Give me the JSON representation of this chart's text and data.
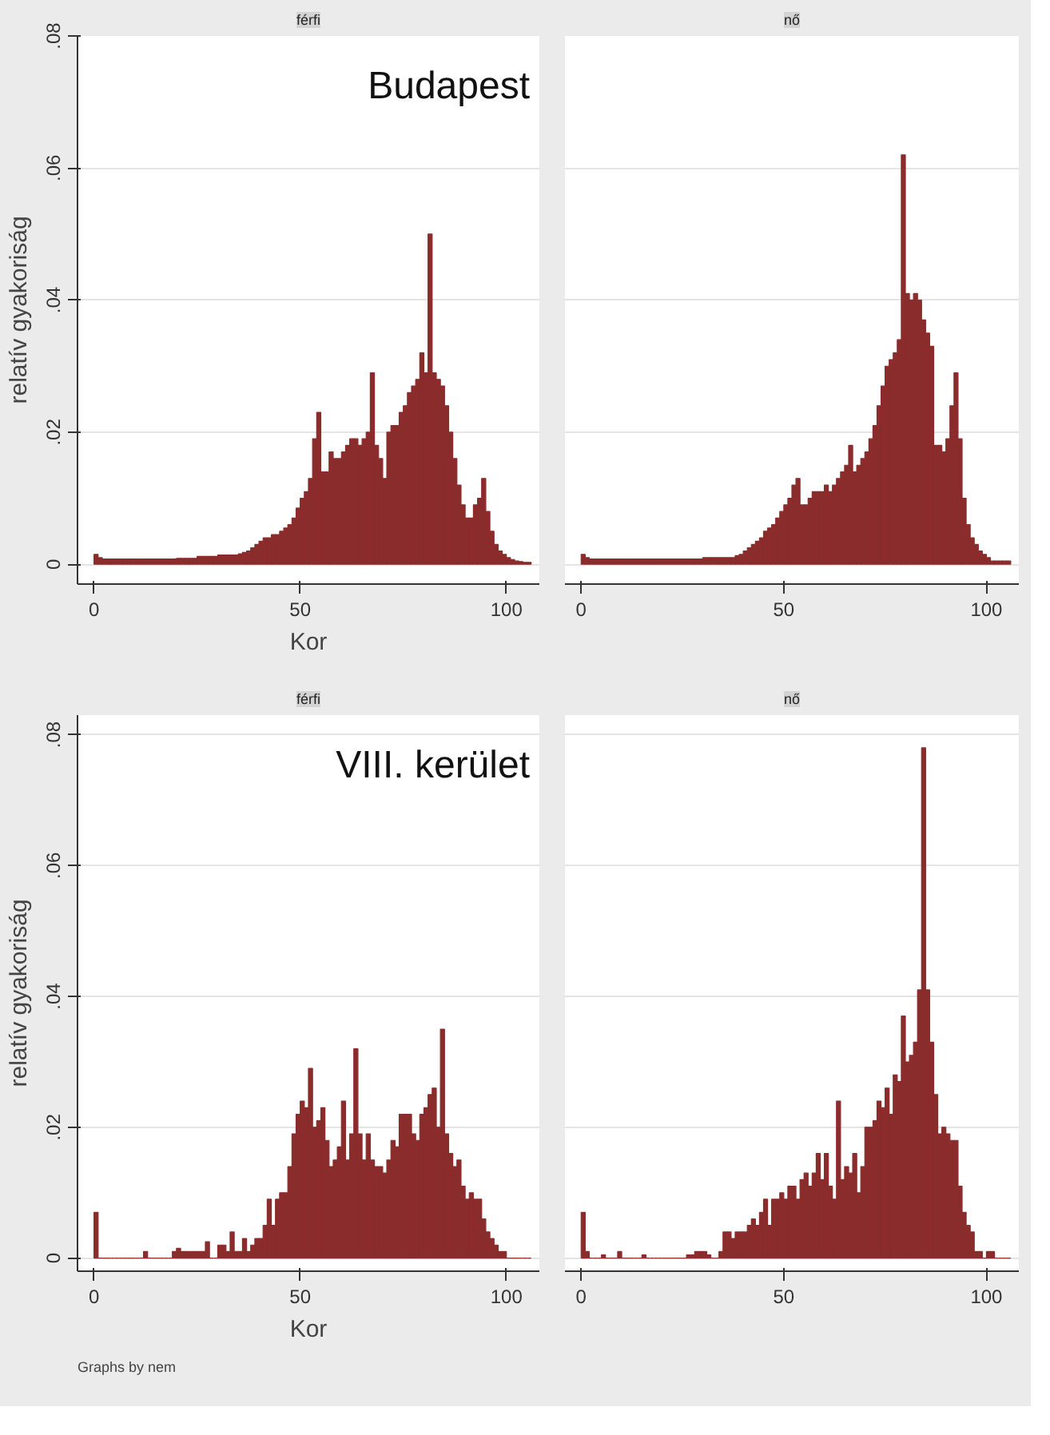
{
  "chart_data": [
    {
      "type": "histogram",
      "title": "férfi",
      "subtitle": "Budapest",
      "xlabel": "Kor",
      "ylabel": "relatív gyakoriság",
      "color": "#8b2c2c",
      "grid": "y",
      "xlim": [
        -4,
        108
      ],
      "ylim": [
        -0.003,
        0.08
      ],
      "xticks": [
        0,
        50,
        100
      ],
      "yticks": [
        {
          "value": 0,
          "label": "0"
        },
        {
          "value": 0.02,
          "label": ".02"
        },
        {
          "value": 0.04,
          "label": ".04"
        },
        {
          "value": 0.06,
          "label": ".06"
        },
        {
          "value": 0.08,
          "label": ".08"
        }
      ],
      "bins": [
        0,
        1,
        2,
        3,
        4,
        5,
        6,
        7,
        8,
        9,
        10,
        11,
        12,
        13,
        14,
        15,
        16,
        17,
        18,
        19,
        20,
        21,
        22,
        23,
        24,
        25,
        26,
        27,
        28,
        29,
        30,
        31,
        32,
        33,
        34,
        35,
        36,
        37,
        38,
        39,
        40,
        41,
        42,
        43,
        44,
        45,
        46,
        47,
        48,
        49,
        50,
        51,
        52,
        53,
        54,
        55,
        56,
        57,
        58,
        59,
        60,
        61,
        62,
        63,
        64,
        65,
        66,
        67,
        68,
        69,
        70,
        71,
        72,
        73,
        74,
        75,
        76,
        77,
        78,
        79,
        80,
        81,
        82,
        83,
        84,
        85,
        86,
        87,
        88,
        89,
        90,
        91,
        92,
        93,
        94,
        95,
        96,
        97,
        98,
        99,
        100,
        101,
        102,
        103,
        104,
        105,
        106
      ],
      "values": [
        0.0015,
        0.001,
        0.0008,
        0.0008,
        0.0008,
        0.0008,
        0.0008,
        0.0008,
        0.0008,
        0.0008,
        0.0008,
        0.0008,
        0.0008,
        0.0008,
        0.0008,
        0.0008,
        0.0008,
        0.0008,
        0.0008,
        0.0008,
        0.0009,
        0.0009,
        0.0009,
        0.0009,
        0.0009,
        0.0012,
        0.0012,
        0.0012,
        0.0012,
        0.0012,
        0.0014,
        0.0014,
        0.0014,
        0.0014,
        0.0014,
        0.0016,
        0.0018,
        0.002,
        0.0025,
        0.003,
        0.0035,
        0.004,
        0.004,
        0.0045,
        0.0045,
        0.005,
        0.0055,
        0.006,
        0.007,
        0.0085,
        0.01,
        0.011,
        0.013,
        0.019,
        0.023,
        0.014,
        0.014,
        0.017,
        0.016,
        0.016,
        0.017,
        0.018,
        0.019,
        0.019,
        0.018,
        0.019,
        0.02,
        0.029,
        0.018,
        0.016,
        0.013,
        0.02,
        0.021,
        0.021,
        0.023,
        0.024,
        0.026,
        0.027,
        0.028,
        0.032,
        0.029,
        0.05,
        0.029,
        0.028,
        0.027,
        0.024,
        0.02,
        0.016,
        0.012,
        0.009,
        0.007,
        0.007,
        0.009,
        0.01,
        0.013,
        0.008,
        0.005,
        0.003,
        0.002,
        0.0015,
        0.001,
        0.0007,
        0.0005,
        0.0004,
        0.0003,
        0.0003
      ]
    },
    {
      "type": "histogram",
      "title": "nő",
      "color": "#8b2c2c",
      "grid": "y",
      "tick_labels": "x",
      "xlim": [
        -4,
        108
      ],
      "ylim": [
        -0.003,
        0.08
      ],
      "xticks": [
        0,
        50,
        100
      ],
      "yticks": [
        0,
        0.02,
        0.04,
        0.06,
        0.08
      ],
      "bins": [
        0,
        1,
        2,
        3,
        4,
        5,
        6,
        7,
        8,
        9,
        10,
        11,
        12,
        13,
        14,
        15,
        16,
        17,
        18,
        19,
        20,
        21,
        22,
        23,
        24,
        25,
        26,
        27,
        28,
        29,
        30,
        31,
        32,
        33,
        34,
        35,
        36,
        37,
        38,
        39,
        40,
        41,
        42,
        43,
        44,
        45,
        46,
        47,
        48,
        49,
        50,
        51,
        52,
        53,
        54,
        55,
        56,
        57,
        58,
        59,
        60,
        61,
        62,
        63,
        64,
        65,
        66,
        67,
        68,
        69,
        70,
        71,
        72,
        73,
        74,
        75,
        76,
        77,
        78,
        79,
        80,
        81,
        82,
        83,
        84,
        85,
        86,
        87,
        88,
        89,
        90,
        91,
        92,
        93,
        94,
        95,
        96,
        97,
        98,
        99,
        100,
        101,
        102,
        103,
        104,
        105,
        106
      ],
      "values": [
        0.0015,
        0.001,
        0.0008,
        0.0008,
        0.0008,
        0.0008,
        0.0008,
        0.0008,
        0.0008,
        0.0008,
        0.0008,
        0.0008,
        0.0008,
        0.0008,
        0.0008,
        0.0008,
        0.0008,
        0.0008,
        0.0008,
        0.0008,
        0.0008,
        0.0008,
        0.0008,
        0.0008,
        0.0008,
        0.0008,
        0.0008,
        0.0008,
        0.0008,
        0.0008,
        0.001,
        0.001,
        0.001,
        0.001,
        0.001,
        0.001,
        0.001,
        0.001,
        0.0013,
        0.0015,
        0.002,
        0.0025,
        0.003,
        0.0035,
        0.004,
        0.005,
        0.0055,
        0.006,
        0.007,
        0.008,
        0.009,
        0.01,
        0.012,
        0.013,
        0.009,
        0.009,
        0.01,
        0.011,
        0.011,
        0.011,
        0.012,
        0.011,
        0.012,
        0.013,
        0.014,
        0.015,
        0.018,
        0.014,
        0.015,
        0.016,
        0.017,
        0.019,
        0.021,
        0.024,
        0.027,
        0.03,
        0.031,
        0.032,
        0.034,
        0.062,
        0.041,
        0.04,
        0.041,
        0.04,
        0.037,
        0.035,
        0.033,
        0.018,
        0.018,
        0.017,
        0.019,
        0.024,
        0.029,
        0.019,
        0.01,
        0.006,
        0.004,
        0.003,
        0.002,
        0.0015,
        0.001,
        0.0005,
        0.0005,
        0.0005,
        0.0005,
        0.0005
      ]
    },
    {
      "type": "histogram",
      "title": "férfi",
      "subtitle": "VIII. kerület",
      "xlabel": "Kor",
      "ylabel": "relatív gyakoriság",
      "color": "#8b2c2c",
      "grid": "y",
      "annotations": [
        "Graphs by nem"
      ],
      "xlim": [
        -4,
        108
      ],
      "ylim": [
        -0.002,
        0.083
      ],
      "xticks": [
        0,
        50,
        100
      ],
      "yticks": [
        {
          "value": 0,
          "label": "0"
        },
        {
          "value": 0.02,
          "label": ".02"
        },
        {
          "value": 0.04,
          "label": ".04"
        },
        {
          "value": 0.06,
          "label": ".06"
        },
        {
          "value": 0.08,
          "label": ".08"
        }
      ],
      "bins": [
        0,
        1,
        2,
        3,
        4,
        5,
        6,
        7,
        8,
        9,
        10,
        11,
        12,
        13,
        14,
        15,
        16,
        17,
        18,
        19,
        20,
        21,
        22,
        23,
        24,
        25,
        26,
        27,
        28,
        29,
        30,
        31,
        32,
        33,
        34,
        35,
        36,
        37,
        38,
        39,
        40,
        41,
        42,
        43,
        44,
        45,
        46,
        47,
        48,
        49,
        50,
        51,
        52,
        53,
        54,
        55,
        56,
        57,
        58,
        59,
        60,
        61,
        62,
        63,
        64,
        65,
        66,
        67,
        68,
        69,
        70,
        71,
        72,
        73,
        74,
        75,
        76,
        77,
        78,
        79,
        80,
        81,
        82,
        83,
        84,
        85,
        86,
        87,
        88,
        89,
        90,
        91,
        92,
        93,
        94,
        95,
        96,
        97,
        98,
        99,
        100,
        101,
        102,
        103,
        104,
        105,
        106
      ],
      "values": [
        0.007,
        0,
        0,
        0,
        0,
        0,
        0,
        0,
        0,
        0,
        0,
        0,
        0.001,
        0,
        0,
        0,
        0,
        0,
        0,
        0.001,
        0.0015,
        0.001,
        0.001,
        0.001,
        0.001,
        0.001,
        0.001,
        0.0025,
        0,
        0,
        0.002,
        0.002,
        0.001,
        0.004,
        0.001,
        0.001,
        0.003,
        0.001,
        0.002,
        0.003,
        0.003,
        0.005,
        0.009,
        0.005,
        0.009,
        0.01,
        0.01,
        0.014,
        0.019,
        0.022,
        0.024,
        0.023,
        0.029,
        0.02,
        0.021,
        0.023,
        0.018,
        0.014,
        0.015,
        0.017,
        0.024,
        0.015,
        0.019,
        0.032,
        0.019,
        0.015,
        0.019,
        0.015,
        0.014,
        0.014,
        0.013,
        0.015,
        0.018,
        0.017,
        0.022,
        0.022,
        0.022,
        0.019,
        0.018,
        0.022,
        0.023,
        0.025,
        0.026,
        0.02,
        0.035,
        0.019,
        0.016,
        0.014,
        0.015,
        0.011,
        0.009,
        0.01,
        0.009,
        0.009,
        0.006,
        0.004,
        0.003,
        0.002,
        0.001,
        0.001,
        0,
        0,
        0,
        0,
        0,
        0
      ]
    },
    {
      "type": "histogram",
      "title": "nő",
      "color": "#8b2c2c",
      "grid": "y",
      "tick_labels": "x",
      "xlim": [
        -4,
        108
      ],
      "ylim": [
        -0.002,
        0.083
      ],
      "xticks": [
        0,
        50,
        100
      ],
      "yticks": [
        0,
        0.02,
        0.04,
        0.06,
        0.08
      ],
      "bins": [
        0,
        1,
        2,
        3,
        4,
        5,
        6,
        7,
        8,
        9,
        10,
        11,
        12,
        13,
        14,
        15,
        16,
        17,
        18,
        19,
        20,
        21,
        22,
        23,
        24,
        25,
        26,
        27,
        28,
        29,
        30,
        31,
        32,
        33,
        34,
        35,
        36,
        37,
        38,
        39,
        40,
        41,
        42,
        43,
        44,
        45,
        46,
        47,
        48,
        49,
        50,
        51,
        52,
        53,
        54,
        55,
        56,
        57,
        58,
        59,
        60,
        61,
        62,
        63,
        64,
        65,
        66,
        67,
        68,
        69,
        70,
        71,
        72,
        73,
        74,
        75,
        76,
        77,
        78,
        79,
        80,
        81,
        82,
        83,
        84,
        85,
        86,
        87,
        88,
        89,
        90,
        91,
        92,
        93,
        94,
        95,
        96,
        97,
        98,
        99,
        100,
        101,
        102,
        103,
        104,
        105,
        106
      ],
      "values": [
        0.007,
        0.001,
        0,
        0,
        0,
        0.0005,
        0,
        0,
        0,
        0.001,
        0,
        0,
        0,
        0,
        0,
        0.0005,
        0,
        0,
        0,
        0,
        0,
        0,
        0,
        0,
        0,
        0,
        0.0005,
        0.0005,
        0.001,
        0.001,
        0.001,
        0.0005,
        0,
        0,
        0.001,
        0.004,
        0.004,
        0.003,
        0.004,
        0.004,
        0.004,
        0.005,
        0.006,
        0.005,
        0.007,
        0.009,
        0.005,
        0.009,
        0.009,
        0.01,
        0.009,
        0.011,
        0.011,
        0.009,
        0.012,
        0.013,
        0.011,
        0.013,
        0.016,
        0.012,
        0.016,
        0.011,
        0.009,
        0.024,
        0.012,
        0.014,
        0.013,
        0.016,
        0.01,
        0.014,
        0.02,
        0.02,
        0.021,
        0.024,
        0.023,
        0.026,
        0.022,
        0.028,
        0.027,
        0.037,
        0.03,
        0.031,
        0.033,
        0.041,
        0.078,
        0.041,
        0.033,
        0.025,
        0.019,
        0.02,
        0.019,
        0.018,
        0.018,
        0.011,
        0.007,
        0.005,
        0.004,
        0.001,
        0.001,
        0,
        0.001,
        0.001,
        0,
        0,
        0,
        0
      ]
    }
  ]
}
